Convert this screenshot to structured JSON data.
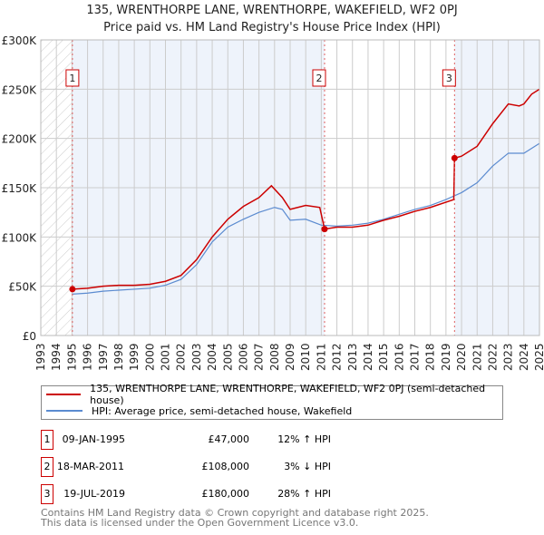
{
  "title": "135, WRENTHORPE LANE, WRENTHORPE, WAKEFIELD, WF2 0PJ",
  "subtitle": "Price paid vs. HM Land Registry's House Price Index (HPI)",
  "colors": {
    "price": "#cc0000",
    "hpi": "#5b8bd0",
    "shade": "#eef3fb"
  },
  "chart_data": {
    "type": "line",
    "xlim": [
      1993,
      2025
    ],
    "ylim": [
      0,
      300000
    ],
    "yticks": [
      {
        "v": 0,
        "label": "£0"
      },
      {
        "v": 50000,
        "label": "£50K"
      },
      {
        "v": 100000,
        "label": "£100K"
      },
      {
        "v": 150000,
        "label": "£150K"
      },
      {
        "v": 200000,
        "label": "£200K"
      },
      {
        "v": 250000,
        "label": "£250K"
      },
      {
        "v": 300000,
        "label": "£300K"
      }
    ],
    "xticks": [
      "1993",
      "1994",
      "1995",
      "1996",
      "1997",
      "1998",
      "1999",
      "2000",
      "2001",
      "2002",
      "2003",
      "2004",
      "2005",
      "2006",
      "2007",
      "2008",
      "2009",
      "2010",
      "2011",
      "2012",
      "2013",
      "2014",
      "2015",
      "2016",
      "2017",
      "2018",
      "2019",
      "2020",
      "2021",
      "2022",
      "2023",
      "2024",
      "2025"
    ],
    "series": [
      {
        "name": "135, WRENTHORPE LANE, WRENTHORPE, WAKEFIELD, WF2 0PJ (semi-detached house)",
        "x": [
          1995.03,
          1996,
          1997,
          1998,
          1999,
          2000,
          2001,
          2002,
          2003,
          2004,
          2005,
          2006,
          2007,
          2007.8,
          2008.5,
          2009,
          2010,
          2010.9,
          2011.21,
          2012,
          2013,
          2014,
          2015,
          2016,
          2017,
          2018,
          2019.5,
          2019.55,
          2020,
          2021,
          2022,
          2023,
          2023.7,
          2024,
          2024.5,
          2025
        ],
        "y": [
          47000,
          48000,
          50000,
          51000,
          51000,
          52000,
          55000,
          61000,
          77000,
          100000,
          118000,
          131000,
          140000,
          152000,
          140000,
          128000,
          132000,
          130000,
          108000,
          110000,
          110000,
          112000,
          117000,
          121000,
          126000,
          130000,
          138000,
          180000,
          182000,
          192000,
          215000,
          235000,
          233000,
          235000,
          245000,
          250000
        ]
      },
      {
        "name": "HPI: Average price, semi-detached house, Wakefield",
        "x": [
          1995,
          1996,
          1997,
          1998,
          1999,
          2000,
          2001,
          2002,
          2003,
          2004,
          2005,
          2006,
          2007,
          2008,
          2008.5,
          2009,
          2010,
          2011,
          2012,
          2013,
          2014,
          2015,
          2016,
          2017,
          2018,
          2019,
          2020,
          2021,
          2022,
          2023,
          2024,
          2025
        ],
        "y": [
          42000,
          43000,
          45000,
          46000,
          47000,
          48000,
          51000,
          57000,
          72000,
          95000,
          110000,
          118000,
          125000,
          130000,
          128000,
          117000,
          118000,
          112000,
          111000,
          112000,
          114000,
          118000,
          123000,
          128000,
          132000,
          138000,
          145000,
          155000,
          172000,
          185000,
          185000,
          195000
        ]
      }
    ],
    "sales": [
      {
        "n": "1",
        "x": 1995.03,
        "y": 47000
      },
      {
        "n": "2",
        "x": 2011.21,
        "y": 108000
      },
      {
        "n": "3",
        "x": 2019.55,
        "y": 180000
      }
    ]
  },
  "legend": {
    "price": "135, WRENTHORPE LANE, WRENTHORPE, WAKEFIELD, WF2 0PJ (semi-detached house)",
    "hpi": "HPI: Average price, semi-detached house, Wakefield"
  },
  "table": [
    {
      "n": "1",
      "date": "09-JAN-1995",
      "price": "£47,000",
      "hpi": "12% ↑ HPI"
    },
    {
      "n": "2",
      "date": "18-MAR-2011",
      "price": "£108,000",
      "hpi": "3% ↓ HPI"
    },
    {
      "n": "3",
      "date": "19-JUL-2019",
      "price": "£180,000",
      "hpi": "28% ↑ HPI"
    }
  ],
  "footer": [
    "Contains HM Land Registry data © Crown copyright and database right 2025.",
    "This data is licensed under the Open Government Licence v3.0."
  ]
}
